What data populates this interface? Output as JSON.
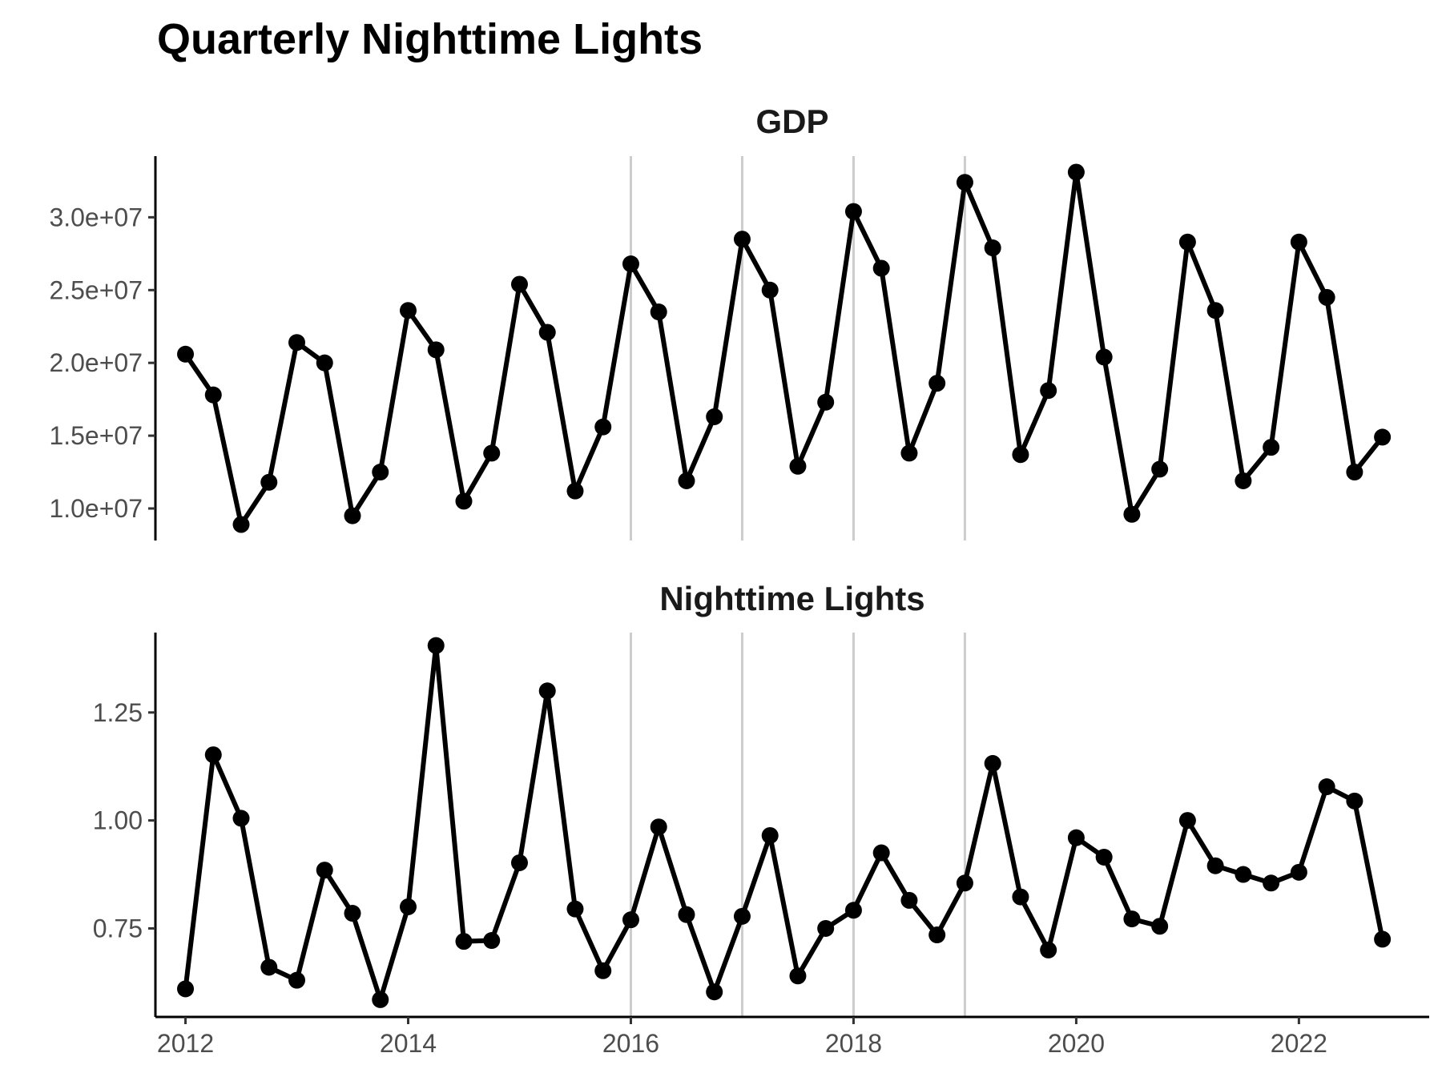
{
  "chart_data": {
    "type": "line",
    "title": "Quarterly Nighttime Lights",
    "xlim": [
      2011.73,
      2023.17
    ],
    "x_ticks": [
      2012,
      2014,
      2016,
      2018,
      2020,
      2022
    ],
    "x_tick_labels": [
      "2012",
      "2014",
      "2016",
      "2018",
      "2020",
      "2022"
    ],
    "vertical_reference_lines": [
      2016,
      2017,
      2018,
      2019
    ],
    "grid": false,
    "legend": "none",
    "line_color": "#000000",
    "reference_line_color": "#cccccc",
    "x": [
      2012.0,
      2012.25,
      2012.5,
      2012.75,
      2013.0,
      2013.25,
      2013.5,
      2013.75,
      2014.0,
      2014.25,
      2014.5,
      2014.75,
      2015.0,
      2015.25,
      2015.5,
      2015.75,
      2016.0,
      2016.25,
      2016.5,
      2016.75,
      2017.0,
      2017.25,
      2017.5,
      2017.75,
      2018.0,
      2018.25,
      2018.5,
      2018.75,
      2019.0,
      2019.25,
      2019.5,
      2019.75,
      2020.0,
      2020.25,
      2020.5,
      2020.75,
      2021.0,
      2021.25,
      2021.5,
      2021.75,
      2022.0,
      2022.25,
      2022.5,
      2022.75
    ],
    "panels": [
      {
        "name": "GDP",
        "ylim": [
          7800000,
          34200000
        ],
        "y_ticks": [
          10000000,
          15000000,
          20000000,
          25000000,
          30000000
        ],
        "y_tick_labels": [
          "1.0e+07",
          "1.5e+07",
          "2.0e+07",
          "2.5e+07",
          "3.0e+07"
        ],
        "values": [
          20600000,
          17800000,
          8900000,
          11800000,
          21400000,
          20000000,
          9500000,
          12500000,
          23600000,
          20900000,
          10500000,
          13800000,
          25400000,
          22100000,
          11200000,
          15600000,
          26800000,
          23500000,
          11900000,
          16300000,
          28500000,
          25000000,
          12900000,
          17300000,
          30400000,
          26500000,
          13800000,
          18600000,
          32400000,
          27900000,
          13700000,
          18100000,
          33100000,
          20400000,
          9600000,
          12700000,
          28300000,
          23600000,
          11900000,
          14200000,
          28300000,
          24500000,
          12500000,
          14900000
        ]
      },
      {
        "name": "Nighttime Lights",
        "ylim": [
          0.545,
          1.435
        ],
        "y_ticks": [
          0.75,
          1.0,
          1.25
        ],
        "y_tick_labels": [
          "0.75",
          "1.00",
          "1.25"
        ],
        "values": [
          0.61,
          1.152,
          1.005,
          0.66,
          0.63,
          0.885,
          0.785,
          0.585,
          0.8,
          1.405,
          0.72,
          0.722,
          0.902,
          1.3,
          0.795,
          0.652,
          0.77,
          0.985,
          0.782,
          0.603,
          0.778,
          0.965,
          0.64,
          0.75,
          0.792,
          0.925,
          0.815,
          0.735,
          0.855,
          1.132,
          0.823,
          0.7,
          0.96,
          0.915,
          0.772,
          0.755,
          1.0,
          0.895,
          0.875,
          0.855,
          0.88,
          1.078,
          1.045,
          0.725
        ]
      }
    ]
  }
}
